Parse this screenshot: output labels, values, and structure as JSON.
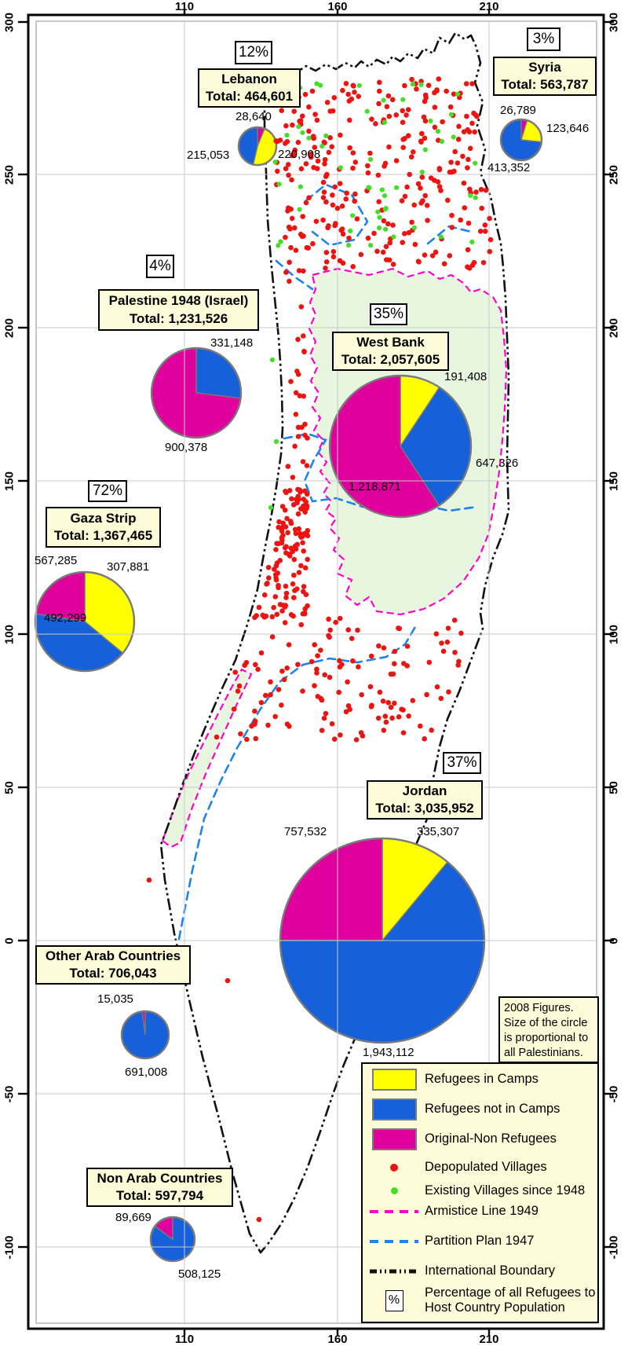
{
  "map_title_note": {
    "lines": [
      "2008 Figures.",
      "Size of the circle",
      "is proportional to",
      "all Palestinians."
    ]
  },
  "axes": {
    "top_ticks": [
      "110",
      "160",
      "210"
    ],
    "bottom_ticks": [
      "110",
      "160",
      "210"
    ],
    "left_ticks": [
      "300",
      "250",
      "200",
      "150",
      "100",
      "50",
      "0",
      "-50",
      "-100"
    ],
    "right_ticks": [
      "300",
      "250",
      "200",
      "150",
      "100",
      "50",
      "0",
      "-50",
      "-100"
    ]
  },
  "colors": {
    "refugees_in_camps": "#FFFF00",
    "refugees_not_in_camps": "#1660D9",
    "original_non_refugees": "#E0009E",
    "depopulated_villages": "#EC1410",
    "existing_villages": "#43DE25",
    "armistice_line": "#FF00CC",
    "partition_plan": "#1E82F0",
    "international_boundary": "#111111",
    "box_fill": "#FDFBD8",
    "land_tint": "#E9F6DF",
    "gridline": "#C8C8C8"
  },
  "legend": {
    "items": [
      {
        "type": "swatch",
        "color_key": "refugees_in_camps",
        "label": "Refugees in Camps"
      },
      {
        "type": "swatch",
        "color_key": "refugees_not_in_camps",
        "label": "Refugees not in Camps"
      },
      {
        "type": "swatch",
        "color_key": "original_non_refugees",
        "label": "Original-Non Refugees"
      },
      {
        "type": "dot",
        "color_key": "depopulated_villages",
        "label": "Depopulated Villages"
      },
      {
        "type": "dot",
        "color_key": "existing_villages",
        "label": "Existing Villages since 1948"
      },
      {
        "type": "dash",
        "color_key": "armistice_line",
        "label": "Armistice Line 1949"
      },
      {
        "type": "dash",
        "color_key": "partition_plan",
        "label": "Partition Plan 1947"
      },
      {
        "type": "dashdot",
        "color_key": "international_boundary",
        "label": "International Boundary"
      },
      {
        "type": "pctbox",
        "symbol": "%",
        "label": "Percentage of all Refugees to Host Country Population"
      }
    ]
  },
  "chart_data": [
    {
      "id": "lebanon",
      "type": "pie",
      "name": "Lebanon",
      "total_label": "Total: 464,601",
      "total": 464601,
      "pct": "12%",
      "slices": [
        {
          "category": "Original-Non Refugees",
          "color_key": "original_non_refugees",
          "value": 28640
        },
        {
          "category": "Refugees in Camps",
          "color_key": "refugees_in_camps",
          "value": 220908
        },
        {
          "category": "Refugees not in Camps",
          "color_key": "refugees_not_in_camps",
          "value": 215053
        }
      ],
      "value_labels": [
        "28,640",
        "220,908",
        "215,053"
      ]
    },
    {
      "id": "syria",
      "type": "pie",
      "name": "Syria",
      "total_label": "Total: 563,787",
      "total": 563787,
      "pct": "3%",
      "slices": [
        {
          "category": "Original-Non Refugees",
          "color_key": "original_non_refugees",
          "value": 26789
        },
        {
          "category": "Refugees in Camps",
          "color_key": "refugees_in_camps",
          "value": 123646
        },
        {
          "category": "Refugees not in Camps",
          "color_key": "refugees_not_in_camps",
          "value": 413352
        }
      ],
      "value_labels": [
        "26,789",
        "123,646",
        "413,352"
      ]
    },
    {
      "id": "palestine_1948",
      "type": "pie",
      "name": "Palestine 1948 (Israel)",
      "total_label": "Total: 1,231,526",
      "total": 1231526,
      "pct": "4%",
      "slices": [
        {
          "category": "Refugees not in Camps",
          "color_key": "refugees_not_in_camps",
          "value": 331148
        },
        {
          "category": "Original-Non Refugees",
          "color_key": "original_non_refugees",
          "value": 900378
        }
      ],
      "value_labels": [
        "331,148",
        "900,378"
      ]
    },
    {
      "id": "west_bank",
      "type": "pie",
      "name": "West Bank",
      "total_label": "Total: 2,057,605",
      "total": 2057605,
      "pct": "35%",
      "slices": [
        {
          "category": "Refugees in Camps",
          "color_key": "refugees_in_camps",
          "value": 191408
        },
        {
          "category": "Refugees not in Camps",
          "color_key": "refugees_not_in_camps",
          "value": 647326
        },
        {
          "category": "Original-Non Refugees",
          "color_key": "original_non_refugees",
          "value": 1218871
        }
      ],
      "value_labels": [
        "191,408",
        "647,326",
        "1,218,871"
      ]
    },
    {
      "id": "gaza",
      "type": "pie",
      "name": "Gaza Strip",
      "total_label": "Total: 1,367,465",
      "total": 1367465,
      "pct": "72%",
      "slices": [
        {
          "category": "Refugees in Camps",
          "color_key": "refugees_in_camps",
          "value": 492299
        },
        {
          "category": "Refugees not in Camps",
          "color_key": "refugees_not_in_camps",
          "value": 567285
        },
        {
          "category": "Original-Non Refugees",
          "color_key": "original_non_refugees",
          "value": 307881
        }
      ],
      "value_labels": [
        "567,285",
        "307,881",
        "492,299"
      ]
    },
    {
      "id": "jordan",
      "type": "pie",
      "name": "Jordan",
      "total_label": "Total: 3,035,952",
      "total": 3035952,
      "pct": "37%",
      "slices": [
        {
          "category": "Refugees in Camps",
          "color_key": "refugees_in_camps",
          "value": 335307
        },
        {
          "category": "Refugees not in Camps",
          "color_key": "refugees_not_in_camps",
          "value": 1943112
        },
        {
          "category": "Original-Non Refugees",
          "color_key": "original_non_refugees",
          "value": 757532
        }
      ],
      "value_labels": [
        "757,532",
        "335,307",
        "1,943,112"
      ]
    },
    {
      "id": "other_arab",
      "type": "pie",
      "name": "Other Arab Countries",
      "total_label": "Total: 706,043",
      "total": 706043,
      "pct": null,
      "slices": [
        {
          "category": "Refugees not in Camps",
          "color_key": "refugees_not_in_camps",
          "value": 691008
        },
        {
          "category": "Original-Non Refugees",
          "color_key": "original_non_refugees",
          "value": 15035
        }
      ],
      "value_labels": [
        "15,035",
        "691,008"
      ]
    },
    {
      "id": "non_arab",
      "type": "pie",
      "name": "Non Arab Countries",
      "total_label": "Total: 597,794",
      "total": 597794,
      "pct": null,
      "slices": [
        {
          "category": "Refugees not in Camps",
          "color_key": "refugees_not_in_camps",
          "value": 508125
        },
        {
          "category": "Original-Non Refugees",
          "color_key": "original_non_refugees",
          "value": 89669
        }
      ],
      "value_labels": [
        "89,669",
        "508,125"
      ]
    }
  ],
  "dots": {
    "depopulated_villages_count": 560,
    "existing_villages_count": 55
  }
}
